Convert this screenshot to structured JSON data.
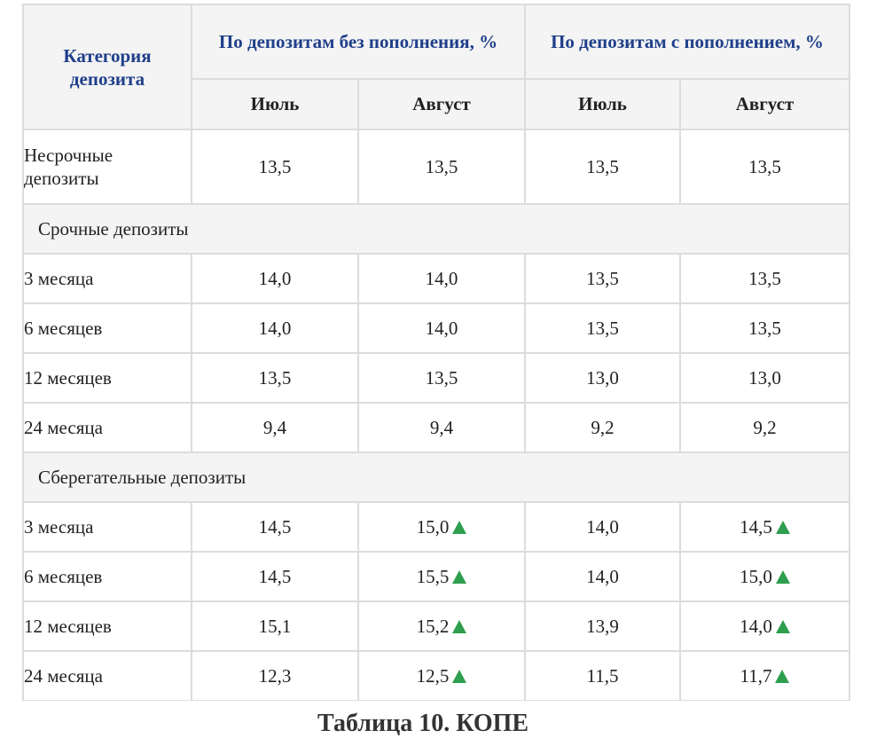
{
  "header": {
    "category": "Категория депозита",
    "group_no_topup": "По депозитам без пополнения, %",
    "group_topup": "По депозитам с пополнением, %",
    "july": "Июль",
    "august": "Август"
  },
  "rows": [
    {
      "type": "data",
      "tall": true,
      "label": "Несрочные депозиты",
      "values": [
        "13,5",
        "13,5",
        "13,5",
        "13,5"
      ],
      "up": [
        false,
        false,
        false,
        false
      ]
    },
    {
      "type": "group",
      "label": "Срочные депозиты"
    },
    {
      "type": "data",
      "label": "3 месяца",
      "values": [
        "14,0",
        "14,0",
        "13,5",
        "13,5"
      ],
      "up": [
        false,
        false,
        false,
        false
      ]
    },
    {
      "type": "data",
      "label": "6 месяцев",
      "values": [
        "14,0",
        "14,0",
        "13,5",
        "13,5"
      ],
      "up": [
        false,
        false,
        false,
        false
      ]
    },
    {
      "type": "data",
      "label": "12 месяцев",
      "values": [
        "13,5",
        "13,5",
        "13,0",
        "13,0"
      ],
      "up": [
        false,
        false,
        false,
        false
      ]
    },
    {
      "type": "data",
      "label": "24 месяца",
      "values": [
        "9,4",
        "9,4",
        "9,2",
        "9,2"
      ],
      "up": [
        false,
        false,
        false,
        false
      ]
    },
    {
      "type": "group",
      "label": "Сберегательные депозиты"
    },
    {
      "type": "data",
      "label": "3 месяца",
      "values": [
        "14,5",
        "15,0",
        "14,0",
        "14,5"
      ],
      "up": [
        false,
        true,
        false,
        true
      ]
    },
    {
      "type": "data",
      "label": "6 месяцев",
      "values": [
        "14,5",
        "15,5",
        "14,0",
        "15,0"
      ],
      "up": [
        false,
        true,
        false,
        true
      ]
    },
    {
      "type": "data",
      "label": "12 месяцев",
      "values": [
        "15,1",
        "15,2",
        "13,9",
        "14,0"
      ],
      "up": [
        false,
        true,
        false,
        true
      ]
    },
    {
      "type": "data",
      "label": "24 месяца",
      "values": [
        "12,3",
        "12,5",
        "11,5",
        "11,7"
      ],
      "up": [
        false,
        true,
        false,
        true
      ]
    }
  ],
  "colors": {
    "header_text": "#1f3f8a",
    "increase_arrow": "#2e9e4f",
    "grid": "#dcdcdc",
    "header_bg": "#f4f4f4"
  },
  "icons": {
    "increase": "triangle-up-icon"
  },
  "cut_text": "Таблица 10. КОПЕ"
}
